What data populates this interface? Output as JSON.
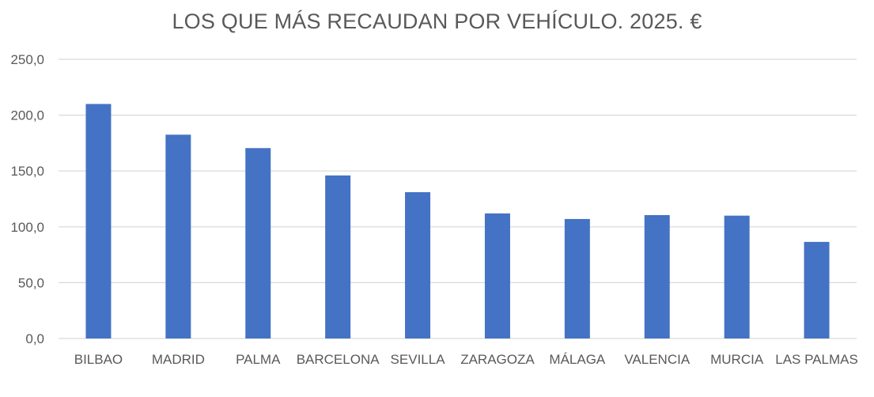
{
  "chart_data": {
    "type": "bar",
    "title": "LOS QUE MÁS RECAUDAN POR VEHÍCULO. 2025. €",
    "xlabel": "",
    "ylabel": "",
    "categories": [
      "BILBAO",
      "MADRID",
      "PALMA",
      "BARCELONA",
      "SEVILLA",
      "ZARAGOZA",
      "MÁLAGA",
      "VALENCIA",
      "MURCIA",
      "LAS PALMAS"
    ],
    "values": [
      210.0,
      182.5,
      170.5,
      146.0,
      131.0,
      112.0,
      107.0,
      110.5,
      110.0,
      86.5
    ],
    "ylim": [
      0,
      250
    ],
    "yticks": [
      "0,0",
      "50,0",
      "100,0",
      "150,0",
      "200,0",
      "250,0"
    ],
    "grid": true,
    "legend": "none",
    "bar_color": "#4472c4",
    "grid_color": "#d9d9d9",
    "text_color": "#595959"
  }
}
